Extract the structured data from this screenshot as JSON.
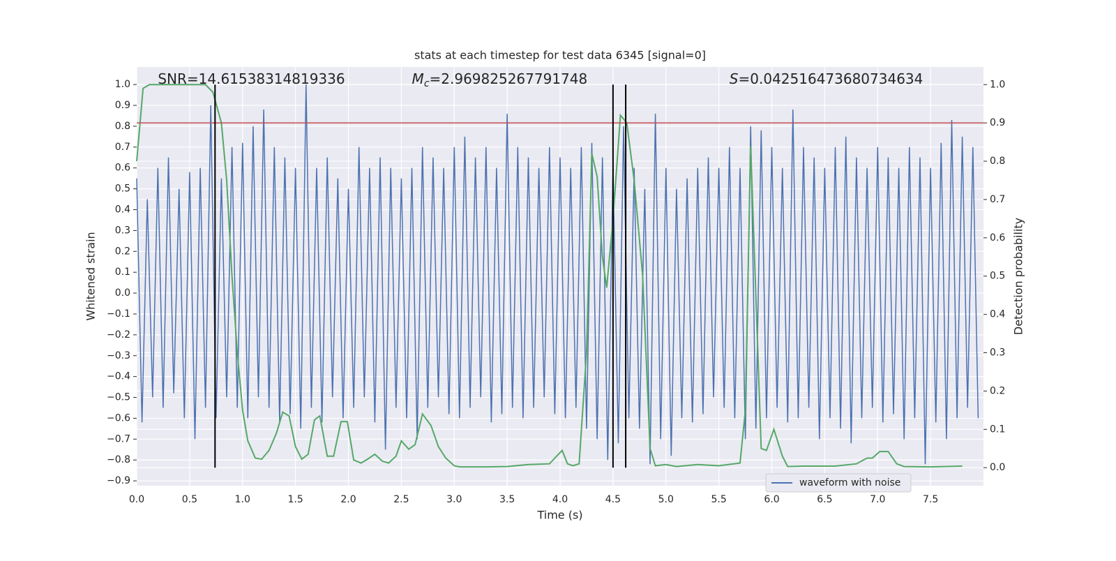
{
  "chart_data": {
    "type": "line",
    "title": "stats at each timestep for test data 6345 [signal=0]",
    "xlabel": "Time (s)",
    "ylabel": "Whitened strain",
    "y2label": "Detection probability",
    "annotations": [
      {
        "text": "SNR=14.61538314819336",
        "x": 0.2
      },
      {
        "symbol": "M",
        "subscript": "c",
        "text": "=2.969825267791748",
        "x": 2.6
      },
      {
        "symbol": "S",
        "text": "=0.042516473680734634",
        "x": 5.6
      }
    ],
    "xlim": [
      0,
      8
    ],
    "ylim": [
      -0.923,
      1.084
    ],
    "y2lim": [
      -0.047,
      1.046
    ],
    "xticks": [
      {
        "value": 0,
        "label": "0.0"
      },
      {
        "value": 0.5,
        "label": "0.5"
      },
      {
        "value": 1,
        "label": "1.0"
      },
      {
        "value": 1.5,
        "label": "1.5"
      },
      {
        "value": 2,
        "label": "2.0"
      },
      {
        "value": 2.5,
        "label": "2.5"
      },
      {
        "value": 3,
        "label": "3.0"
      },
      {
        "value": 3.5,
        "label": "3.5"
      },
      {
        "value": 4,
        "label": "4.0"
      },
      {
        "value": 4.5,
        "label": "4.5"
      },
      {
        "value": 5,
        "label": "5.0"
      },
      {
        "value": 5.5,
        "label": "5.5"
      },
      {
        "value": 6,
        "label": "6.0"
      },
      {
        "value": 6.5,
        "label": "6.5"
      },
      {
        "value": 7,
        "label": "7.0"
      },
      {
        "value": 7.5,
        "label": "7.5"
      }
    ],
    "yticks": [
      {
        "value": -0.9,
        "label": "−0.9"
      },
      {
        "value": -0.8,
        "label": "−0.8"
      },
      {
        "value": -0.7,
        "label": "−0.7"
      },
      {
        "value": -0.6,
        "label": "−0.6"
      },
      {
        "value": -0.5,
        "label": "−0.5"
      },
      {
        "value": -0.4,
        "label": "−0.4"
      },
      {
        "value": -0.3,
        "label": "−0.3"
      },
      {
        "value": -0.2,
        "label": "−0.2"
      },
      {
        "value": -0.1,
        "label": "−0.1"
      },
      {
        "value": 0,
        "label": "0.0"
      },
      {
        "value": 0.1,
        "label": "0.1"
      },
      {
        "value": 0.2,
        "label": "0.2"
      },
      {
        "value": 0.3,
        "label": "0.3"
      },
      {
        "value": 0.4,
        "label": "0.4"
      },
      {
        "value": 0.5,
        "label": "0.5"
      },
      {
        "value": 0.6,
        "label": "0.6"
      },
      {
        "value": 0.7,
        "label": "0.7"
      },
      {
        "value": 0.8,
        "label": "0.8"
      },
      {
        "value": 0.9,
        "label": "0.9"
      },
      {
        "value": 1,
        "label": "1.0"
      }
    ],
    "y2ticks": [
      {
        "value": 0,
        "label": "0.0"
      },
      {
        "value": 0.1,
        "label": "0.1"
      },
      {
        "value": 0.2,
        "label": "0.2"
      },
      {
        "value": 0.3,
        "label": "0.3"
      },
      {
        "value": 0.4,
        "label": "0.4"
      },
      {
        "value": 0.5,
        "label": "0.5"
      },
      {
        "value": 0.6,
        "label": "0.6"
      },
      {
        "value": 0.7,
        "label": "0.7"
      },
      {
        "value": 0.8,
        "label": "0.8"
      },
      {
        "value": 0.9,
        "label": "0.9"
      },
      {
        "value": 1,
        "label": "1.0"
      }
    ],
    "grid": true,
    "legend": "lower right",
    "threshold": {
      "value": 0.9,
      "axis": "y2",
      "color": "#c44e52"
    },
    "markers": {
      "x": [
        0.74,
        4.5,
        4.62
      ],
      "color": "#000000"
    },
    "series": [
      {
        "name": "waveform with noise",
        "color": "#4c72b0",
        "x": [
          0,
          0.05,
          0.1,
          0.15,
          0.2,
          0.25,
          0.3,
          0.35,
          0.4,
          0.45,
          0.5,
          0.55,
          0.6,
          0.65,
          0.7,
          0.75,
          0.8,
          0.85,
          0.9,
          0.95,
          1,
          1.05,
          1.1,
          1.15,
          1.2,
          1.25,
          1.3,
          1.35,
          1.4,
          1.45,
          1.5,
          1.55,
          1.6,
          1.65,
          1.7,
          1.75,
          1.8,
          1.85,
          1.9,
          1.95,
          2,
          2.05,
          2.1,
          2.15,
          2.2,
          2.25,
          2.3,
          2.35,
          2.4,
          2.45,
          2.5,
          2.55,
          2.6,
          2.65,
          2.7,
          2.75,
          2.8,
          2.85,
          2.9,
          2.95,
          3,
          3.05,
          3.1,
          3.15,
          3.2,
          3.25,
          3.3,
          3.35,
          3.4,
          3.45,
          3.5,
          3.55,
          3.6,
          3.65,
          3.7,
          3.75,
          3.8,
          3.85,
          3.9,
          3.95,
          4,
          4.05,
          4.1,
          4.15,
          4.2,
          4.25,
          4.3,
          4.35,
          4.4,
          4.45,
          4.5,
          4.55,
          4.6,
          4.65,
          4.7,
          4.75,
          4.8,
          4.85,
          4.9,
          4.95,
          5,
          5.05,
          5.1,
          5.15,
          5.2,
          5.25,
          5.3,
          5.35,
          5.4,
          5.45,
          5.5,
          5.55,
          5.6,
          5.65,
          5.7,
          5.75,
          5.8,
          5.85,
          5.9,
          5.95,
          6,
          6.05,
          6.1,
          6.15,
          6.2,
          6.25,
          6.3,
          6.35,
          6.4,
          6.45,
          6.5,
          6.55,
          6.6,
          6.65,
          6.7,
          6.75,
          6.8,
          6.85,
          6.9,
          6.95,
          7,
          7.05,
          7.1,
          7.15,
          7.2,
          7.25,
          7.3,
          7.35,
          7.4,
          7.45,
          7.5,
          7.55,
          7.6,
          7.65,
          7.7,
          7.75,
          7.8,
          7.85,
          7.9,
          7.95
        ],
        "values": [
          0.55,
          -0.62,
          0.45,
          -0.5,
          0.6,
          -0.55,
          0.65,
          -0.48,
          0.5,
          -0.6,
          0.58,
          -0.7,
          0.6,
          -0.55,
          0.9,
          -0.6,
          0.55,
          -0.5,
          0.7,
          -0.55,
          0.72,
          -0.6,
          0.8,
          -0.5,
          0.88,
          -0.55,
          0.7,
          -0.62,
          0.65,
          -0.58,
          0.6,
          -0.65,
          1.0,
          -0.55,
          0.6,
          -0.62,
          0.65,
          -0.5,
          0.55,
          -0.6,
          0.5,
          -0.55,
          0.7,
          -0.5,
          0.6,
          -0.62,
          0.65,
          -0.75,
          0.6,
          -0.55,
          0.55,
          -0.6,
          0.6,
          -0.7,
          0.7,
          -0.55,
          0.65,
          -0.5,
          0.6,
          -0.58,
          0.7,
          -0.6,
          0.75,
          -0.55,
          0.65,
          -0.5,
          0.7,
          -0.62,
          0.6,
          -0.58,
          0.86,
          -0.55,
          0.7,
          -0.6,
          0.65,
          -0.55,
          0.6,
          -0.5,
          0.7,
          -0.58,
          0.65,
          -0.6,
          0.6,
          -0.55,
          0.7,
          -0.65,
          0.72,
          -0.7,
          0.65,
          -0.8,
          0.6,
          -0.72,
          0.8,
          -0.6,
          0.6,
          -0.65,
          0.5,
          -0.82,
          0.86,
          -0.7,
          0.6,
          -0.78,
          0.5,
          -0.6,
          0.55,
          -0.62,
          0.6,
          -0.58,
          0.65,
          -0.5,
          0.6,
          -0.55,
          0.7,
          -0.6,
          0.6,
          -0.7,
          0.8,
          -0.65,
          0.78,
          -0.6,
          0.7,
          -0.55,
          0.6,
          -0.62,
          0.88,
          -0.6,
          0.7,
          -0.55,
          0.65,
          -0.7,
          0.6,
          -0.6,
          0.7,
          -0.65,
          0.75,
          -0.72,
          0.65,
          -0.6,
          0.6,
          -0.55,
          0.7,
          -0.62,
          0.65,
          -0.58,
          0.6,
          -0.7,
          0.7,
          -0.6,
          0.65,
          -0.82,
          0.6,
          -0.62,
          0.72,
          -0.7,
          0.83,
          -0.6,
          0.75,
          -0.55,
          0.7,
          -0.6
        ]
      },
      {
        "color": "#55a868",
        "axis": "y2",
        "x": [
          0,
          0.06,
          0.12,
          0.2,
          0.4,
          0.65,
          0.72,
          0.8,
          0.85,
          0.9,
          0.95,
          1,
          1.05,
          1.12,
          1.18,
          1.25,
          1.32,
          1.38,
          1.44,
          1.5,
          1.56,
          1.62,
          1.68,
          1.73,
          1.8,
          1.86,
          1.93,
          1.99,
          2.05,
          2.12,
          2.18,
          2.25,
          2.32,
          2.38,
          2.45,
          2.5,
          2.57,
          2.63,
          2.7,
          2.78,
          2.85,
          2.92,
          3,
          3.05,
          3.3,
          3.5,
          3.7,
          3.9,
          3.95,
          4.02,
          4.07,
          4.12,
          4.18,
          4.25,
          4.3,
          4.35,
          4.4,
          4.44,
          4.5,
          4.57,
          4.63,
          4.7,
          4.78,
          4.85,
          4.9,
          5,
          5.1,
          5.3,
          5.5,
          5.7,
          5.75,
          5.8,
          5.9,
          5.95,
          6.02,
          6.1,
          6.15,
          6.3,
          6.6,
          6.8,
          6.9,
          6.95,
          7.02,
          7.1,
          7.18,
          7.25,
          7.5,
          7.8
        ],
        "values": [
          0.8,
          0.99,
          1,
          1,
          1,
          1,
          0.98,
          0.9,
          0.75,
          0.5,
          0.3,
          0.15,
          0.07,
          0.025,
          0.022,
          0.045,
          0.09,
          0.145,
          0.135,
          0.055,
          0.022,
          0.035,
          0.125,
          0.135,
          0.03,
          0.03,
          0.12,
          0.12,
          0.02,
          0.012,
          0.022,
          0.035,
          0.017,
          0.012,
          0.03,
          0.07,
          0.048,
          0.06,
          0.14,
          0.11,
          0.055,
          0.025,
          0.005,
          0.002,
          0.002,
          0.003,
          0.008,
          0.01,
          0.025,
          0.045,
          0.01,
          0.005,
          0.01,
          0.3,
          0.82,
          0.76,
          0.55,
          0.47,
          0.65,
          0.92,
          0.9,
          0.75,
          0.5,
          0.05,
          0.005,
          0.008,
          0.003,
          0.008,
          0.005,
          0.012,
          0.15,
          0.84,
          0.05,
          0.045,
          0.1,
          0.03,
          0.003,
          0.004,
          0.004,
          0.01,
          0.025,
          0.025,
          0.042,
          0.042,
          0.01,
          0.003,
          0.002,
          0.004
        ]
      }
    ]
  }
}
